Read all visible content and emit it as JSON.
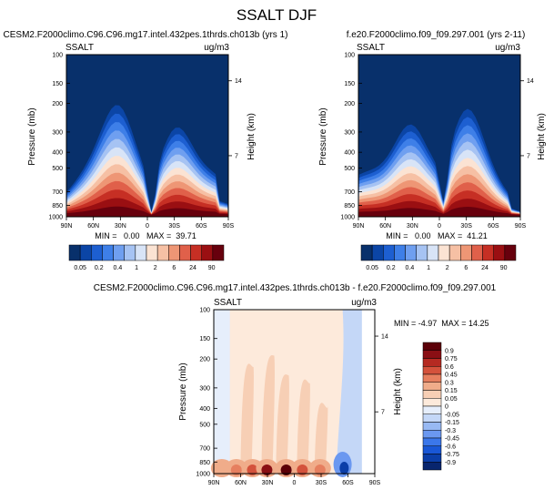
{
  "title": "SSALT DJF",
  "colors": {
    "seq": [
      "#08306b",
      "#0b45a6",
      "#1d5fd1",
      "#3e7fe8",
      "#6f9ff0",
      "#a6c3f3",
      "#d8e4f7",
      "#fbe3d3",
      "#f6c0a4",
      "#ee9675",
      "#e0604a",
      "#c62f24",
      "#9a0f12",
      "#67000d"
    ],
    "div": [
      "#08256e",
      "#0b3ea8",
      "#1957d6",
      "#3b77ea",
      "#6b98f0",
      "#98b9f3",
      "#c4d7f7",
      "#e6eefb",
      "#fdeadb",
      "#f7cfb5",
      "#f0ac8a",
      "#e67f5f",
      "#d4523c",
      "#b52a22",
      "#8a0f14",
      "#5c0008"
    ]
  },
  "chart_data": [
    {
      "id": "panel-left",
      "type": "contour",
      "title": "CESM2.F2000climo.C96.C96.mg17.intel.432pes.1thrds.ch013b (yrs 1)",
      "label_left": "SSALT",
      "label_right": "ug/m3",
      "ylabel": "Pressure (mb)",
      "ylabel_right": "Height (km)",
      "x_ticks": [
        "90N",
        "60N",
        "30N",
        "0",
        "30S",
        "60S",
        "90S"
      ],
      "y_ticks": [
        "100",
        "150",
        "200",
        "300",
        "400",
        "500",
        "700",
        "850",
        "1000"
      ],
      "right_ticks": [
        "14",
        "7"
      ],
      "min_max": "MIN =   0.00   MAX =  39.71",
      "colorbar_labels": [
        "0.05",
        "0.2",
        "0.4",
        "1",
        "2",
        "6",
        "24",
        "90"
      ]
    },
    {
      "id": "panel-right",
      "type": "contour",
      "title": "f.e20.F2000climo.f09_f09.297.001 (yrs 2-11)",
      "label_left": "SSALT",
      "label_right": "ug/m3",
      "ylabel": "Pressure (mb)",
      "ylabel_right": "Height (km)",
      "x_ticks": [
        "90N",
        "60N",
        "30N",
        "0",
        "30S",
        "60S",
        "90S"
      ],
      "y_ticks": [
        "100",
        "150",
        "200",
        "300",
        "400",
        "500",
        "700",
        "850",
        "1000"
      ],
      "right_ticks": [
        "14",
        "7"
      ],
      "min_max": "MIN =   0.00   MAX =  41.21",
      "colorbar_labels": [
        "0.05",
        "0.2",
        "0.4",
        "1",
        "2",
        "6",
        "24",
        "90"
      ]
    },
    {
      "id": "panel-diff",
      "type": "contour",
      "title": "CESM2.F2000climo.C96.C96.mg17.intel.432pes.1thrds.ch013b - f.e20.F2000climo.f09_f09.297.001",
      "label_left": "SSALT",
      "label_right": "ug/m3",
      "ylabel": "Pressure (mb)",
      "ylabel_right": "Height (km)",
      "x_ticks": [
        "90N",
        "60N",
        "30N",
        "0",
        "30S",
        "60S",
        "90S"
      ],
      "y_ticks": [
        "100",
        "150",
        "200",
        "300",
        "400",
        "500",
        "700",
        "850",
        "1000"
      ],
      "right_ticks": [
        "14",
        "7"
      ],
      "min_max": "MIN = -4.97  MAX = 14.25",
      "colorbar_labels": [
        "0.9",
        "0.75",
        "0.6",
        "0.45",
        "0.3",
        "0.15",
        "0.05",
        "0",
        "-0.05",
        "-0.15",
        "-0.3",
        "-0.45",
        "-0.6",
        "-0.75",
        "-0.9"
      ]
    }
  ]
}
